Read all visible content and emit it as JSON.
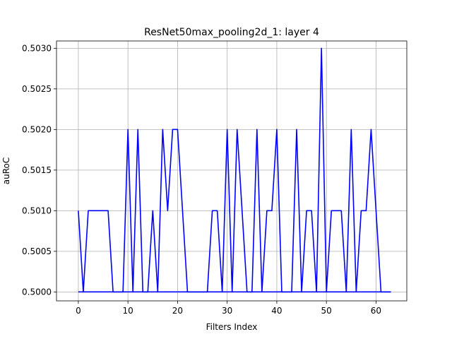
{
  "chart_data": {
    "type": "line",
    "title": "ResNet50max_pooling2d_1: layer 4",
    "xlabel": "Filters Index",
    "ylabel": "auRoC",
    "xlim": [
      -4.4,
      66.2
    ],
    "ylim": [
      0.49989,
      0.50309
    ],
    "xticks": [
      0,
      10,
      20,
      30,
      40,
      50,
      60
    ],
    "yticks": [
      "0.5000",
      "0.5005",
      "0.5010",
      "0.5015",
      "0.5020",
      "0.5025",
      "0.5030"
    ],
    "grid": true,
    "series": [
      {
        "color": "#0000ff",
        "x": [
          0,
          1,
          2,
          3,
          4,
          5,
          6,
          7,
          8,
          9,
          10,
          11,
          12,
          13,
          14,
          15,
          16,
          17,
          18,
          19,
          20,
          21,
          22,
          23,
          24,
          25,
          26,
          27,
          28,
          29,
          30,
          31,
          32,
          33,
          34,
          35,
          36,
          37,
          38,
          39,
          40,
          41,
          42,
          43,
          44,
          45,
          46,
          47,
          48,
          49,
          50,
          51,
          52,
          53,
          54,
          55,
          56,
          57,
          58,
          59,
          60,
          61,
          62,
          63
        ],
        "values": [
          0.501,
          0.5,
          0.501,
          0.501,
          0.501,
          0.501,
          0.501,
          0.5,
          0.5,
          0.5,
          0.502,
          0.5,
          0.502,
          0.5,
          0.5,
          0.501,
          0.5,
          0.502,
          0.501,
          0.502,
          0.502,
          0.501,
          0.5,
          0.5,
          0.5,
          0.5,
          0.5,
          0.501,
          0.501,
          0.5,
          0.502,
          0.5,
          0.502,
          0.501,
          0.5,
          0.5,
          0.502,
          0.5,
          0.501,
          0.501,
          0.502,
          0.5,
          0.5,
          0.5,
          0.502,
          0.5,
          0.501,
          0.501,
          0.5,
          0.503,
          0.5,
          0.501,
          0.501,
          0.501,
          0.5,
          0.502,
          0.5,
          0.501,
          0.501,
          0.502,
          0.501,
          0.5,
          0.5,
          0.5
        ]
      },
      {
        "color": "#0000ff",
        "x": [
          0,
          63
        ],
        "values": [
          0.5,
          0.5
        ]
      }
    ]
  }
}
